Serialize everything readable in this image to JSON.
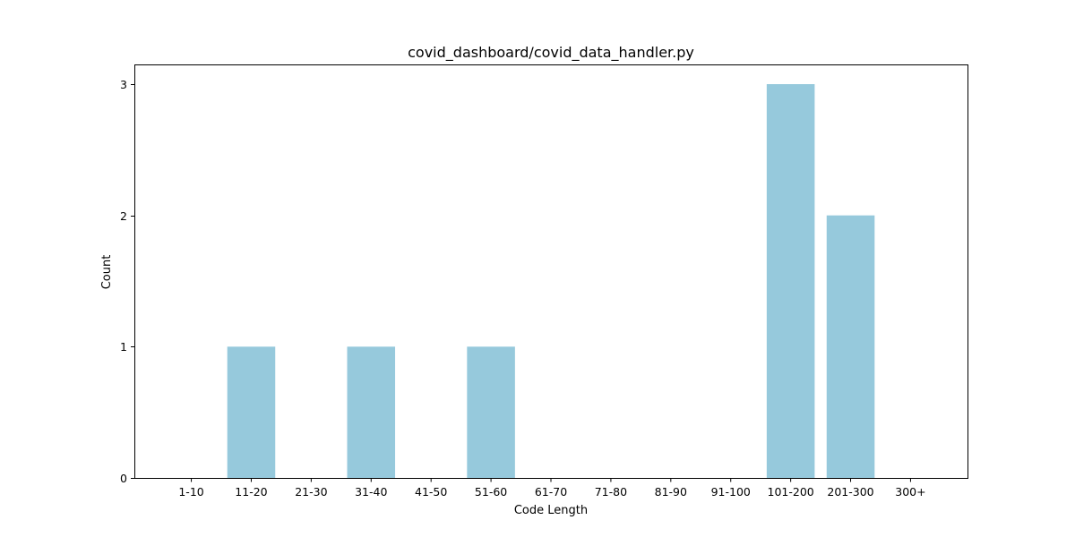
{
  "chart_data": {
    "type": "bar",
    "title": "covid_dashboard/covid_data_handler.py",
    "xlabel": "Code Length",
    "ylabel": "Count",
    "categories": [
      "1-10",
      "11-20",
      "21-30",
      "31-40",
      "41-50",
      "51-60",
      "61-70",
      "71-80",
      "81-90",
      "91-100",
      "101-200",
      "201-300",
      "300+"
    ],
    "values": [
      0,
      1,
      0,
      1,
      0,
      1,
      0,
      0,
      0,
      0,
      3,
      2,
      0
    ],
    "ylim": [
      0,
      3.15
    ],
    "yticks": [
      0,
      1,
      2,
      3
    ],
    "bar_color": "#96c9dc",
    "grid": false,
    "legend": "none"
  }
}
